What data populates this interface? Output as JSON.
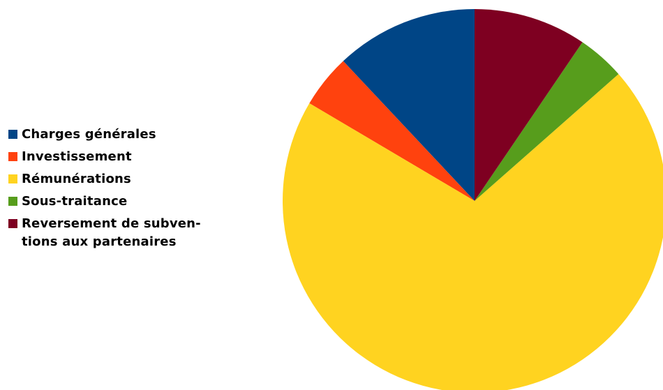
{
  "chart_data": {
    "type": "pie",
    "title": "",
    "legend_position": "left",
    "slices": [
      {
        "label": "Charges générales",
        "value": 12.0,
        "color": "#004586"
      },
      {
        "label": "Investissement",
        "value": 4.5,
        "color": "#ff420e"
      },
      {
        "label": "Rémunérations",
        "value": 70.0,
        "color": "#ffd320"
      },
      {
        "label": "Sous-traitance",
        "value": 4.0,
        "color": "#579d1c"
      },
      {
        "label": "Reversement de subven-\ntions aux partenaires",
        "value": 9.5,
        "color": "#7e0021"
      }
    ]
  }
}
